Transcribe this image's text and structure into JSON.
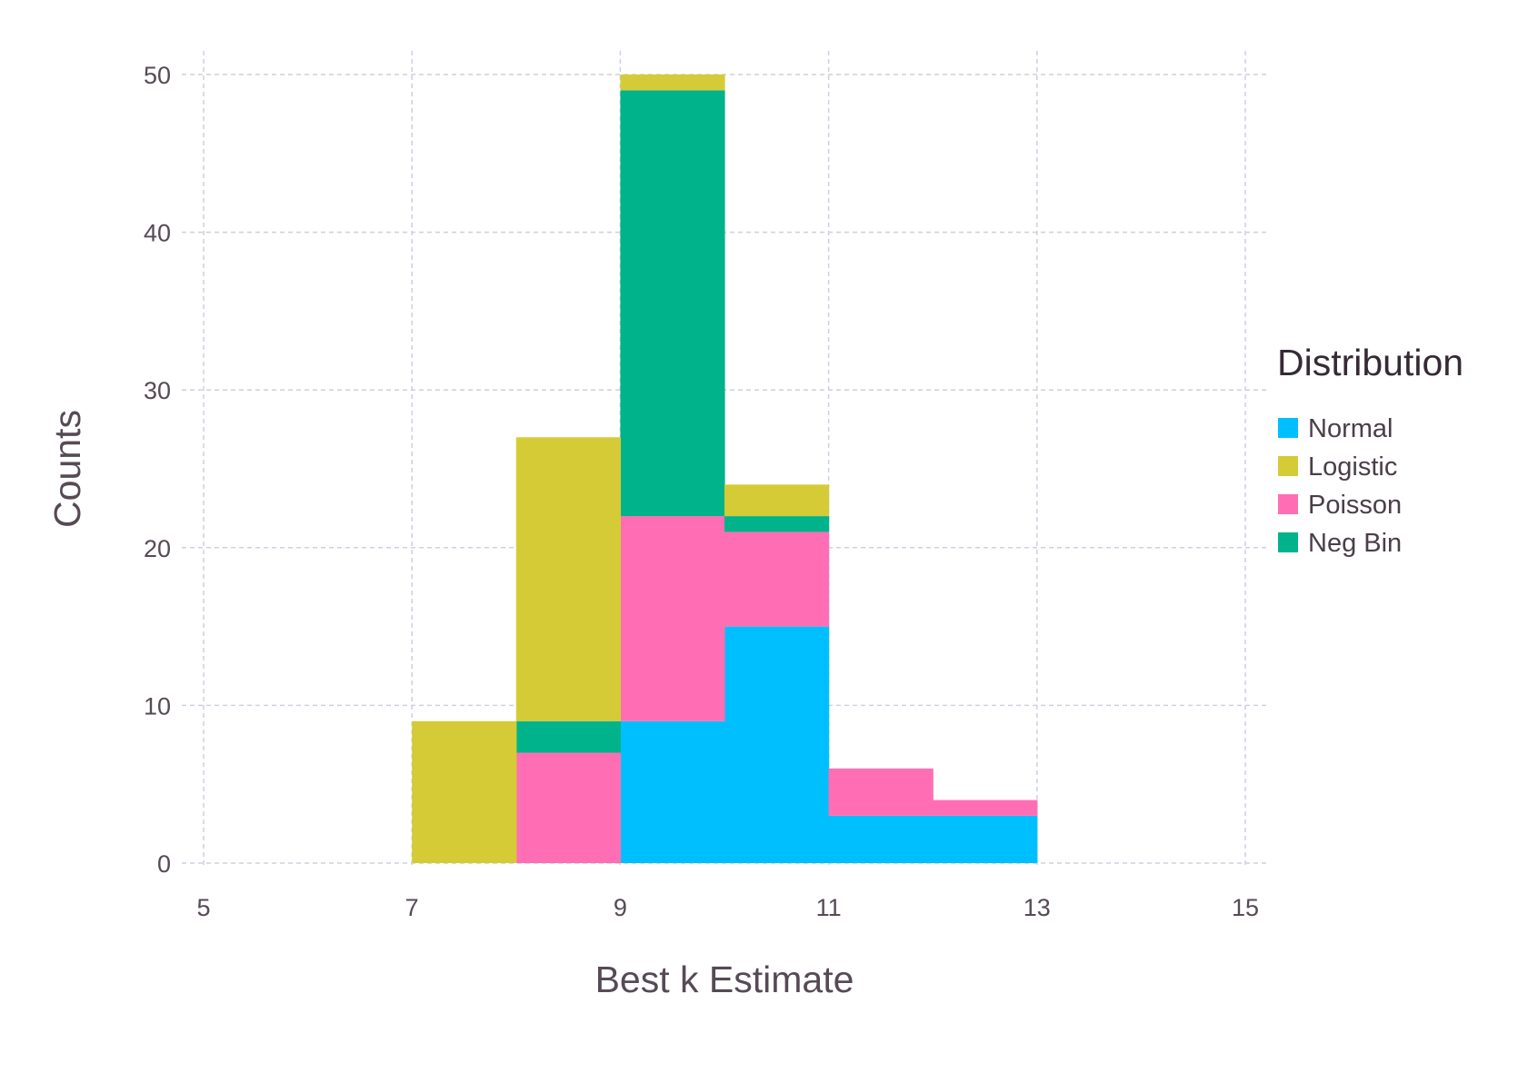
{
  "chart_data": {
    "type": "bar",
    "stacked": true,
    "histogram": true,
    "bin_edges": [
      7,
      8,
      9,
      10,
      11,
      12,
      13
    ],
    "xlabel": "Best k Estimate",
    "ylabel": "Counts",
    "xlim": [
      5,
      15
    ],
    "ylim": [
      0,
      50
    ],
    "xticks": [
      5,
      7,
      9,
      11,
      13,
      15
    ],
    "yticks": [
      0,
      10,
      20,
      30,
      40,
      50
    ],
    "grid": true,
    "legend": {
      "title": "Distribution",
      "placement": "right"
    },
    "series": [
      {
        "name": "Normal",
        "color": "#00bfff",
        "values": [
          0,
          0,
          9,
          15,
          3,
          3
        ]
      },
      {
        "name": "Poisson",
        "color": "#ff6eb4",
        "values": [
          0,
          7,
          13,
          6,
          3,
          1
        ]
      },
      {
        "name": "Neg Bin",
        "color": "#00b38a",
        "values": [
          0,
          2,
          27,
          1,
          0,
          0
        ]
      },
      {
        "name": "Logistic",
        "color": "#d4cb36",
        "values": [
          9,
          18,
          1,
          2,
          0,
          0
        ]
      }
    ],
    "legend_order": [
      "Normal",
      "Logistic",
      "Poisson",
      "Neg Bin"
    ]
  }
}
